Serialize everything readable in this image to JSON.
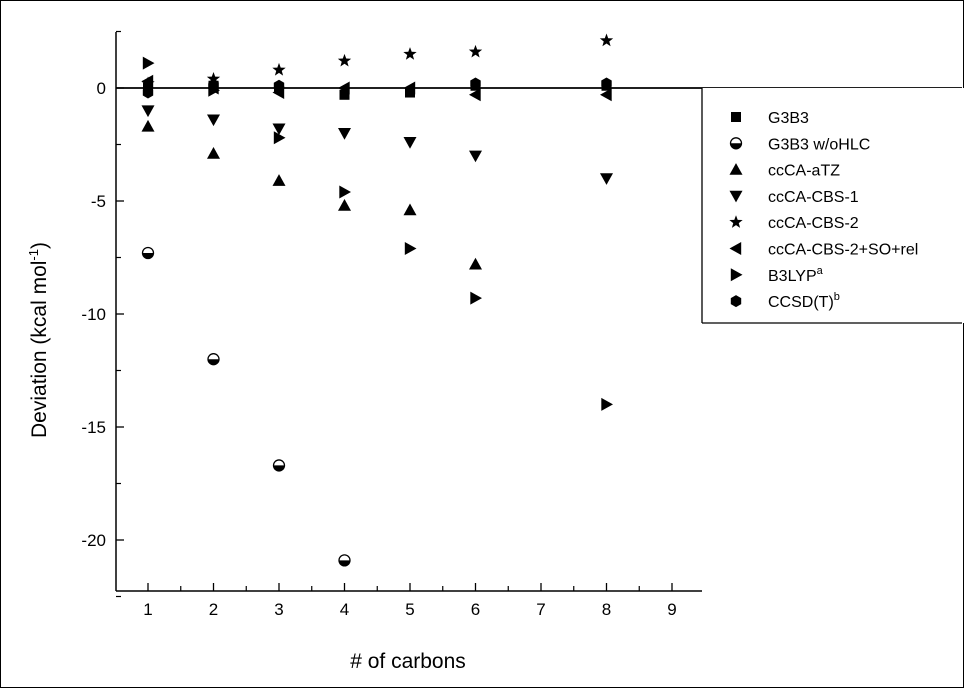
{
  "chart_data": {
    "type": "scatter",
    "xlabel": "# of carbons",
    "ylabel": "Deviation (kcal mol",
    "ylabel_sup": "-1",
    "ylabel_tail": ")",
    "xlim": [
      0,
      9
    ],
    "ylim": [
      -22.5,
      2.5
    ],
    "x_ticks": [
      1,
      2,
      3,
      4,
      5,
      6,
      7,
      8,
      9
    ],
    "x_tick_labels": [
      "1",
      "2",
      "3",
      "4",
      "5",
      "6",
      "7",
      "8",
      "9"
    ],
    "y_ticks": [
      0,
      -5,
      -10,
      -15,
      -20
    ],
    "y_tick_labels": [
      "0",
      "-5",
      "-10",
      "-15",
      "-20"
    ],
    "reference_line_y": 0,
    "grid": false,
    "legend_position": "right",
    "series": [
      {
        "name": "G3B3",
        "marker": "square",
        "points": [
          [
            1,
            0.0
          ],
          [
            2,
            0.1
          ],
          [
            3,
            0.0
          ],
          [
            4,
            -0.3
          ],
          [
            5,
            -0.2
          ],
          [
            6,
            0.1
          ],
          [
            8,
            0.1
          ]
        ]
      },
      {
        "name": "G3B3 w/oHLC",
        "marker": "half-circle",
        "points": [
          [
            1,
            -7.3
          ],
          [
            2,
            -12.0
          ],
          [
            3,
            -16.7
          ],
          [
            4,
            -20.9
          ]
        ]
      },
      {
        "name": "ccCA-aTZ",
        "marker": "triangle-up",
        "points": [
          [
            1,
            -1.7
          ],
          [
            2,
            -2.9
          ],
          [
            3,
            -4.1
          ],
          [
            4,
            -5.2
          ],
          [
            5,
            -5.4
          ],
          [
            6,
            -7.8
          ]
        ]
      },
      {
        "name": "ccCA-CBS-1",
        "marker": "triangle-down",
        "points": [
          [
            1,
            -1.0
          ],
          [
            2,
            -1.4
          ],
          [
            3,
            -1.8
          ],
          [
            4,
            -2.0
          ],
          [
            5,
            -2.4
          ],
          [
            6,
            -3.0
          ],
          [
            8,
            -4.0
          ]
        ]
      },
      {
        "name": "ccCA-CBS-2",
        "marker": "star",
        "points": [
          [
            1,
            0.2
          ],
          [
            2,
            0.4
          ],
          [
            3,
            0.8
          ],
          [
            4,
            1.2
          ],
          [
            5,
            1.5
          ],
          [
            6,
            1.6
          ],
          [
            8,
            2.1
          ]
        ]
      },
      {
        "name": "ccCA-CBS-2+SO+rel",
        "marker": "triangle-left",
        "points": [
          [
            1,
            0.3
          ],
          [
            2,
            0.0
          ],
          [
            3,
            -0.2
          ],
          [
            4,
            0.0
          ],
          [
            5,
            0.0
          ],
          [
            6,
            -0.3
          ],
          [
            8,
            -0.3
          ]
        ]
      },
      {
        "name": "B3LYP",
        "name_sup": "a",
        "marker": "triangle-right",
        "points": [
          [
            1,
            1.1
          ],
          [
            2,
            -0.1
          ],
          [
            3,
            -2.2
          ],
          [
            4,
            -4.6
          ],
          [
            5,
            -7.1
          ],
          [
            6,
            -9.3
          ],
          [
            8,
            -14.0
          ]
        ]
      },
      {
        "name": "CCSD(T)",
        "name_sup": "b",
        "marker": "hexagon",
        "points": [
          [
            1,
            -0.2
          ],
          [
            2,
            0.1
          ],
          [
            3,
            0.1
          ],
          [
            6,
            0.2
          ],
          [
            8,
            0.2
          ]
        ]
      }
    ]
  }
}
